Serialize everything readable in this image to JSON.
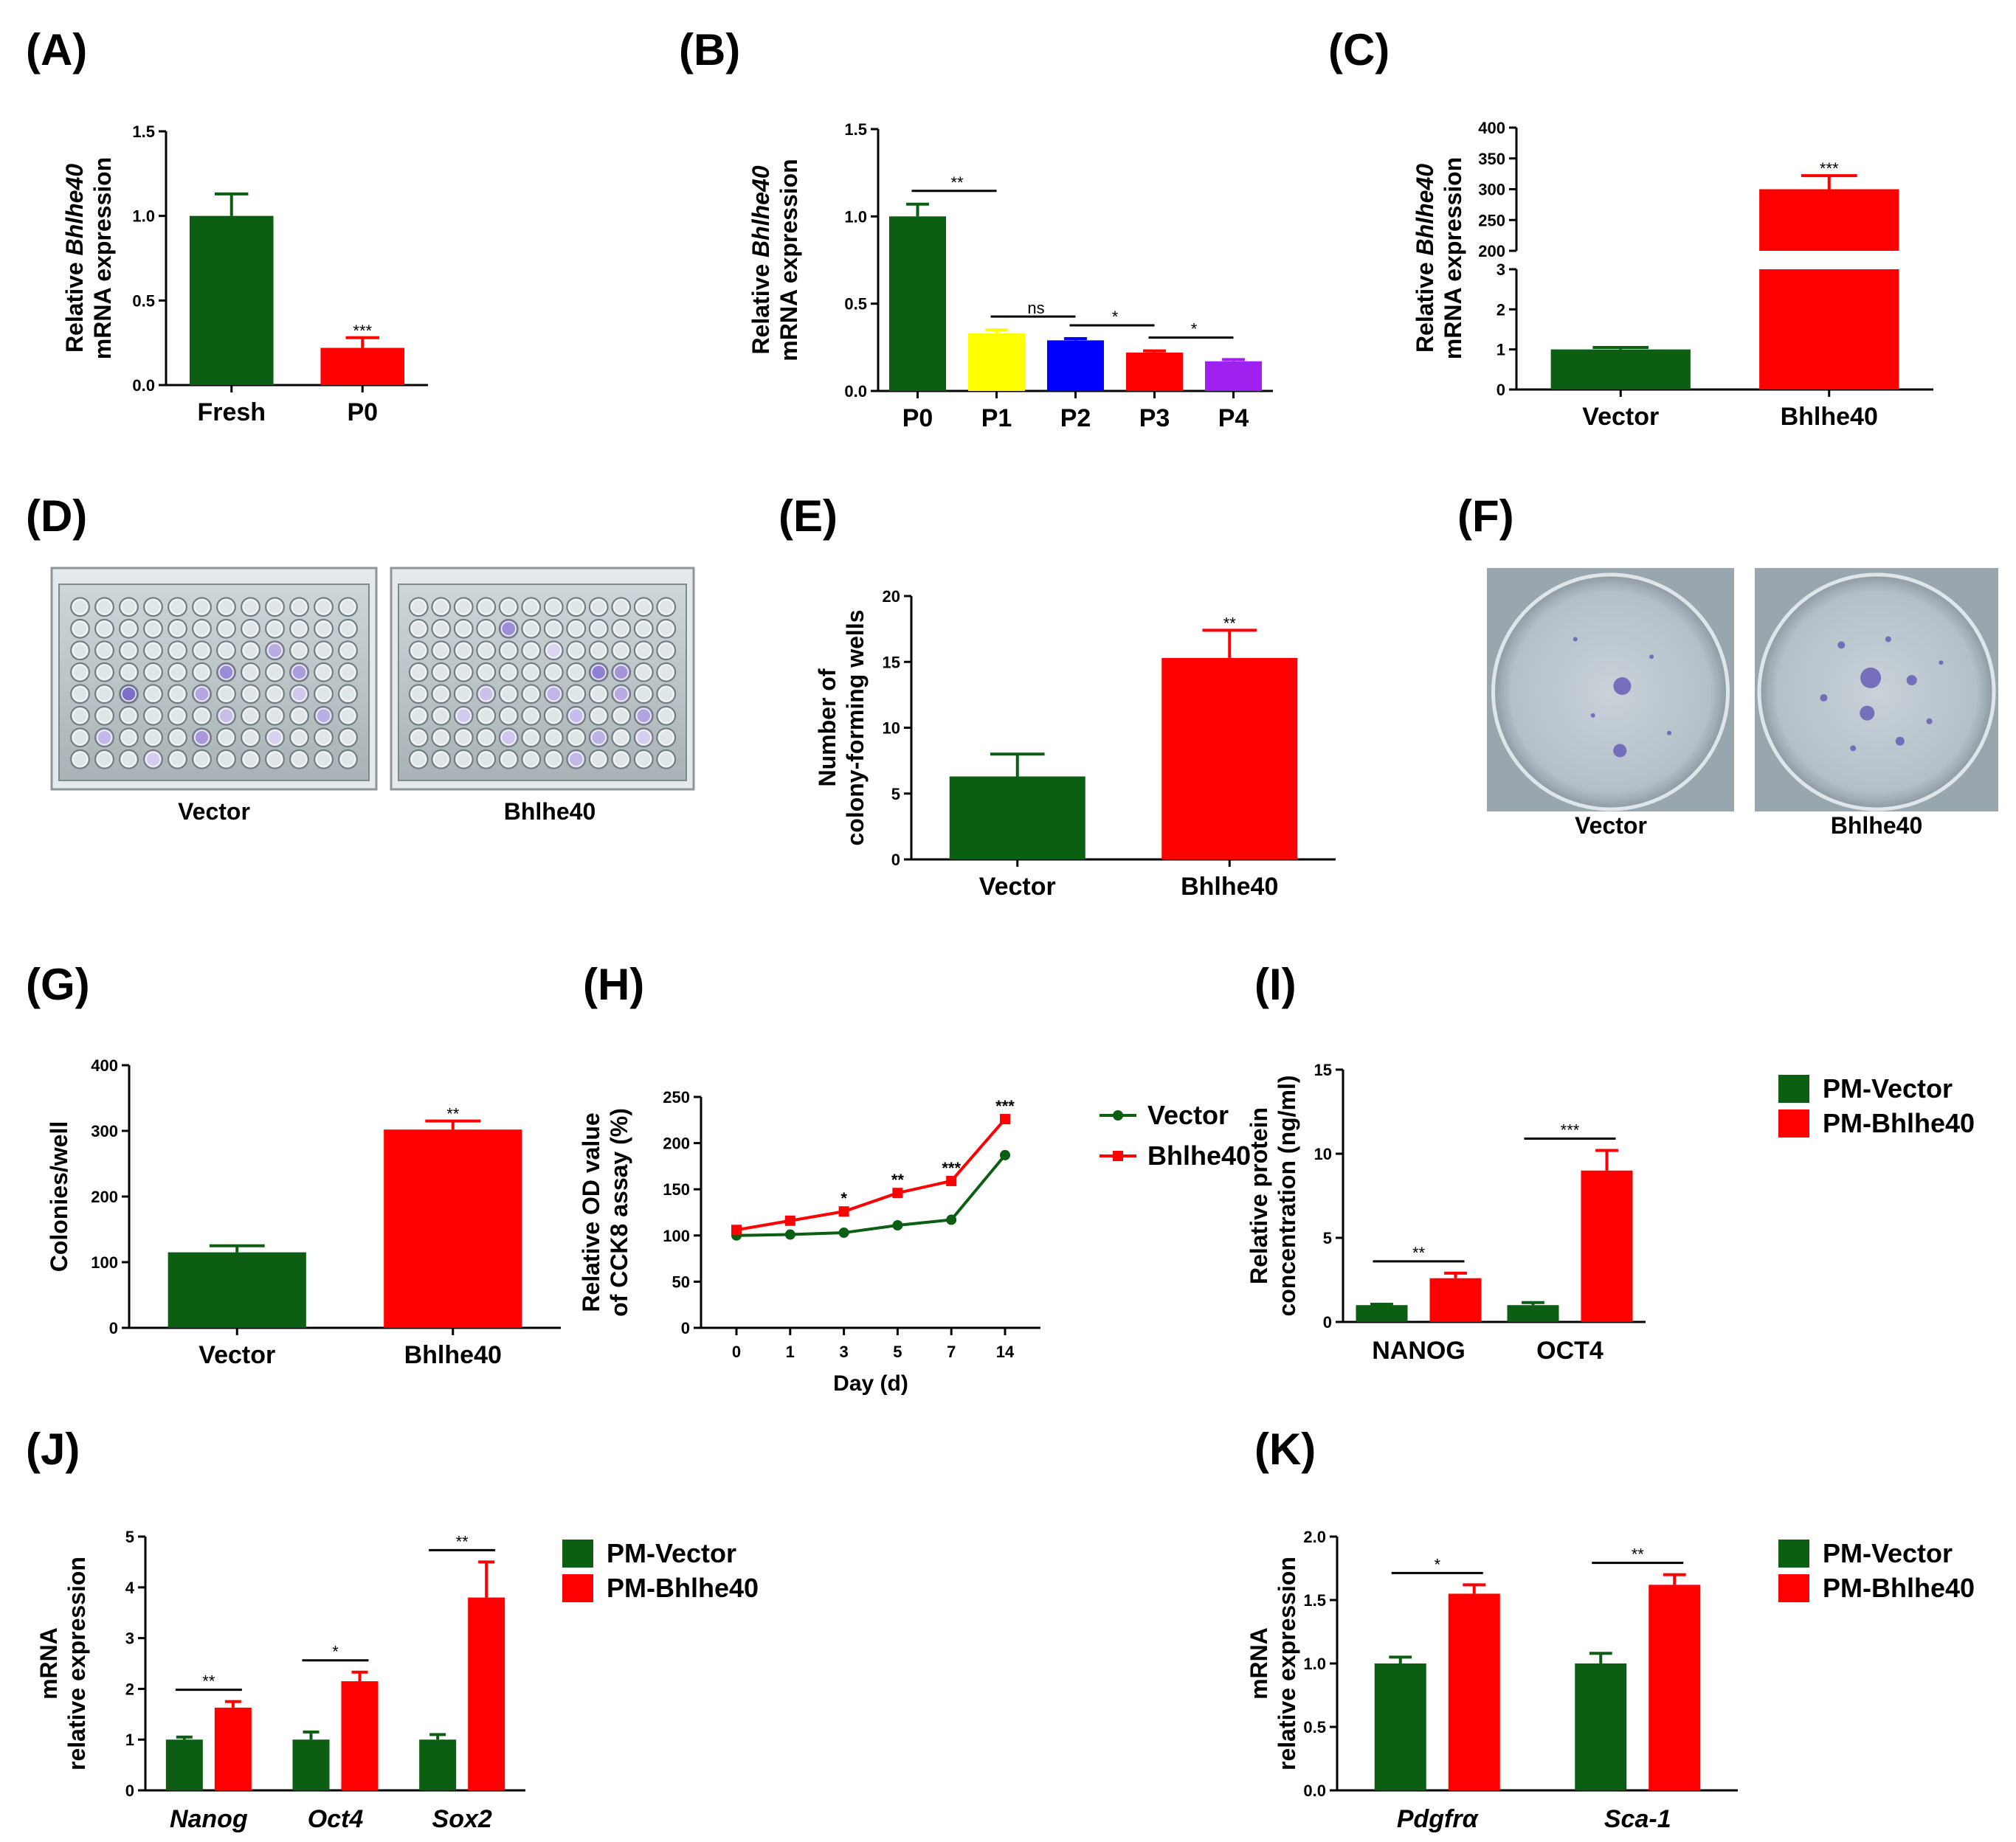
{
  "figure": {
    "colors": {
      "green": "#0b5e12",
      "red": "#ff0000",
      "yellow": "#ffff00",
      "blue": "#0000ff",
      "purple": "#a020f0"
    }
  },
  "chart_data": [
    {
      "id": "A",
      "label": "(A)",
      "type": "bar",
      "ylabel": [
        "Relative Bhlhe40",
        "mRNA expression"
      ],
      "ylabel_italic_word": "Bhlhe40",
      "ylim": [
        0,
        1.5
      ],
      "yticks": [
        "0.0",
        "0.5",
        "1.0",
        "1.5"
      ],
      "categories": [
        "Fresh",
        "P0"
      ],
      "values": [
        1.0,
        0.22
      ],
      "errors": [
        0.13,
        0.06
      ],
      "colors": [
        "green",
        "red"
      ],
      "sig": [
        {
          "bar": 1,
          "text": "***"
        }
      ]
    },
    {
      "id": "B",
      "label": "(B)",
      "type": "bar",
      "ylabel": [
        "Relative Bhlhe40",
        "mRNA expression"
      ],
      "ylabel_italic_word": "Bhlhe40",
      "ylim": [
        0,
        1.5
      ],
      "yticks": [
        "0.0",
        "0.5",
        "1.0",
        "1.5"
      ],
      "categories": [
        "P0",
        "P1",
        "P2",
        "P3",
        "P4"
      ],
      "values": [
        1.0,
        0.33,
        0.29,
        0.22,
        0.17
      ],
      "errors": [
        0.07,
        0.02,
        0.01,
        0.01,
        0.01
      ],
      "colors": [
        "green",
        "yellow",
        "blue",
        "red",
        "purple"
      ],
      "brackets": [
        {
          "from": 0,
          "to": 1,
          "text": "**"
        },
        {
          "from": 1,
          "to": 2,
          "text": "ns"
        },
        {
          "from": 2,
          "to": 3,
          "text": "*"
        },
        {
          "from": 3,
          "to": 4,
          "text": "*"
        }
      ]
    },
    {
      "id": "C",
      "label": "(C)",
      "type": "bar",
      "ylabel": [
        "Relative Bhlhe40",
        "mRNA expression"
      ],
      "ylabel_italic_word": "Bhlhe40",
      "axis_break": true,
      "lower_range": [
        0,
        3
      ],
      "lower_ticks": [
        "0",
        "1",
        "2",
        "3"
      ],
      "upper_range": [
        200,
        400
      ],
      "upper_ticks": [
        "200",
        "250",
        "300",
        "350",
        "400"
      ],
      "categories": [
        "Vector",
        "Bhlhe40"
      ],
      "values": [
        1.0,
        300
      ],
      "errors": [
        0.05,
        22
      ],
      "colors": [
        "green",
        "red"
      ],
      "sig": [
        {
          "bar": 1,
          "text": "***"
        }
      ]
    },
    {
      "id": "E",
      "label": "(E)",
      "type": "bar",
      "ylabel": [
        "Number of",
        "colony-forming wells"
      ],
      "ylim": [
        0,
        20
      ],
      "yticks": [
        "0",
        "5",
        "10",
        "15",
        "20"
      ],
      "categories": [
        "Vector",
        "Bhlhe40"
      ],
      "values": [
        6.3,
        15.3
      ],
      "errors": [
        1.7,
        2.1
      ],
      "colors": [
        "green",
        "red"
      ],
      "sig": [
        {
          "bar": 1,
          "text": "**"
        }
      ]
    },
    {
      "id": "G",
      "label": "(G)",
      "type": "bar",
      "ylabel": [
        "Colonies/well"
      ],
      "ylim": [
        0,
        400
      ],
      "yticks": [
        "0",
        "100",
        "200",
        "300",
        "400"
      ],
      "categories": [
        "Vector",
        "Bhlhe40"
      ],
      "values": [
        115,
        302
      ],
      "errors": [
        10,
        13
      ],
      "colors": [
        "green",
        "red"
      ],
      "sig": [
        {
          "bar": 1,
          "text": "**"
        }
      ]
    },
    {
      "id": "H",
      "label": "(H)",
      "type": "line",
      "ylabel": [
        "Relative OD value",
        "of CCK8 assay (%)"
      ],
      "xlabel": "Day (d)",
      "ylim": [
        0,
        250
      ],
      "yticks": [
        "0",
        "50",
        "100",
        "150",
        "200",
        "250"
      ],
      "x": [
        "0",
        "1",
        "3",
        "5",
        "7",
        "14"
      ],
      "series": [
        {
          "name": "Vector",
          "color": "green",
          "marker": "circle",
          "values": [
            100,
            101,
            103,
            111,
            117,
            187
          ]
        },
        {
          "name": "Bhlhe40",
          "color": "red",
          "marker": "square",
          "values": [
            106,
            116,
            126,
            146,
            159,
            226
          ]
        }
      ],
      "sig": [
        {
          "index": 2,
          "text": "*"
        },
        {
          "index": 3,
          "text": "**"
        },
        {
          "index": 4,
          "text": "***"
        },
        {
          "index": 5,
          "text": "***"
        }
      ]
    },
    {
      "id": "I",
      "label": "(I)",
      "type": "grouped-bar",
      "ylabel": [
        "Relative protein",
        "concentration (ng/ml)"
      ],
      "ylim": [
        0,
        15
      ],
      "yticks": [
        "0",
        "5",
        "10",
        "15"
      ],
      "categories": [
        "NANOG",
        "OCT4"
      ],
      "italic_categories": false,
      "series": [
        {
          "name": "PM-Vector",
          "color": "green",
          "values": [
            1.0,
            1.0
          ],
          "errors": [
            0.05,
            0.15
          ]
        },
        {
          "name": "PM-Bhlhe40",
          "color": "red",
          "values": [
            2.6,
            9.0
          ],
          "errors": [
            0.3,
            1.2
          ]
        }
      ],
      "brackets": [
        {
          "group": 0,
          "text": "**"
        },
        {
          "group": 1,
          "text": "***"
        }
      ]
    },
    {
      "id": "J",
      "label": "(J)",
      "type": "grouped-bar",
      "ylabel": [
        "mRNA",
        "relative expression"
      ],
      "ylim": [
        0,
        5
      ],
      "yticks": [
        "0",
        "1",
        "2",
        "3",
        "4",
        "5"
      ],
      "categories": [
        "Nanog",
        "Oct4",
        "Sox2"
      ],
      "italic_categories": true,
      "series": [
        {
          "name": "PM-Vector",
          "color": "green",
          "values": [
            1.0,
            1.0,
            1.0
          ],
          "errors": [
            0.05,
            0.15,
            0.1
          ]
        },
        {
          "name": "PM-Bhlhe40",
          "color": "red",
          "values": [
            1.63,
            2.15,
            3.8
          ],
          "errors": [
            0.12,
            0.18,
            0.7
          ]
        }
      ],
      "brackets": [
        {
          "group": 0,
          "text": "**"
        },
        {
          "group": 1,
          "text": "*"
        },
        {
          "group": 2,
          "text": "**"
        }
      ]
    },
    {
      "id": "K",
      "label": "(K)",
      "type": "grouped-bar",
      "ylabel": [
        "mRNA",
        "relative expression"
      ],
      "ylim": [
        0,
        2
      ],
      "yticks": [
        "0.0",
        "0.5",
        "1.0",
        "1.5",
        "2.0"
      ],
      "categories": [
        "Pdgfrα",
        "Sca-1"
      ],
      "italic_categories": true,
      "series": [
        {
          "name": "PM-Vector",
          "color": "green",
          "values": [
            1.0,
            1.0
          ],
          "errors": [
            0.05,
            0.08
          ]
        },
        {
          "name": "PM-Bhlhe40",
          "color": "red",
          "values": [
            1.55,
            1.62
          ],
          "errors": [
            0.07,
            0.08
          ]
        }
      ],
      "brackets": [
        {
          "group": 0,
          "text": "*"
        },
        {
          "group": 1,
          "text": "**"
        }
      ]
    }
  ],
  "photos": {
    "D": {
      "label": "(D)",
      "captions": [
        "Vector",
        "Bhlhe40"
      ]
    },
    "F": {
      "label": "(F)",
      "captions": [
        "Vector",
        "Bhlhe40"
      ]
    }
  }
}
